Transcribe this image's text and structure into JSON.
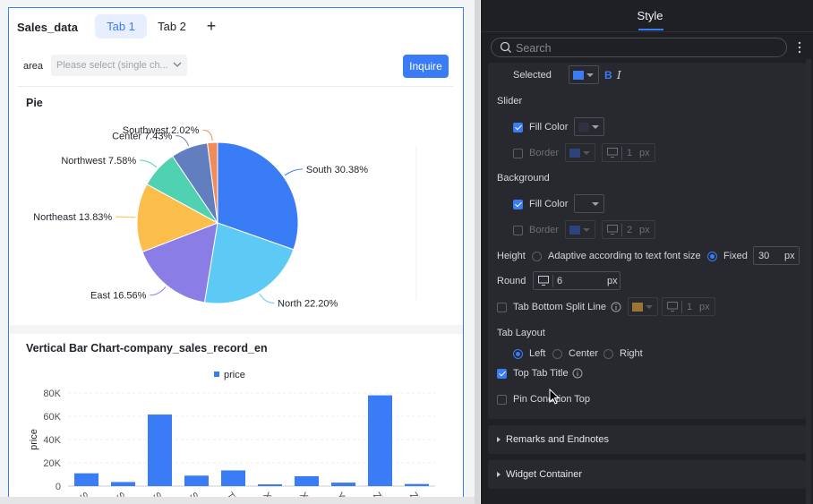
{
  "widget": {
    "title": "Sales_data",
    "tabs": [
      {
        "label": "Tab 1",
        "active": true
      },
      {
        "label": "Tab 2",
        "active": false
      }
    ],
    "add_tab": "+"
  },
  "filter": {
    "label": "area",
    "placeholder": "Please select (single ch...",
    "button": "Inquire"
  },
  "pie_card": {
    "title": "Pie"
  },
  "bar_card": {
    "title": "Vertical Bar Chart-company_sales_record_en"
  },
  "chart_data": [
    {
      "type": "pie",
      "title": "Pie",
      "slices": [
        {
          "label": "South",
          "percent": 30.38,
          "color": "#3a7bf6"
        },
        {
          "label": "North",
          "percent": 22.2,
          "color": "#5ccaf5"
        },
        {
          "label": "East",
          "percent": 16.56,
          "color": "#8a7ee6"
        },
        {
          "label": "Northeast",
          "percent": 13.83,
          "color": "#fbbe4b"
        },
        {
          "label": "Northwest",
          "percent": 7.58,
          "color": "#50d2b2"
        },
        {
          "label": "Center",
          "percent": 7.43,
          "color": "#617fbe"
        },
        {
          "label": "Southwest",
          "percent": 2.02,
          "color": "#f08c5a"
        }
      ]
    },
    {
      "type": "bar",
      "title": "Vertical Bar Chart-company_sales_record_en",
      "legend": "price",
      "ylabel": "price",
      "ylim": [
        0,
        80000
      ],
      "yticks": [
        "0",
        "20K",
        "40K",
        "60K",
        "80K"
      ],
      "categories": [
        "Shar",
        "Shar",
        "Shar",
        "Sich",
        "Tian",
        "Xica",
        "Xinji",
        "Yunr",
        "Zheji",
        "Zhor"
      ],
      "values": [
        11000,
        3500,
        61500,
        9000,
        13500,
        1500,
        8500,
        3000,
        78000,
        1800
      ],
      "color": "#3a7bf6"
    }
  ],
  "panel": {
    "title": "Style",
    "search_placeholder": "Search",
    "selected_label": "Selected",
    "selected_color": "#3a7bf6",
    "bold": "B",
    "italic": "I",
    "slider": {
      "title": "Slider",
      "fill_color": "Fill Color",
      "fill_swatch": "#2d3142",
      "border": "Border",
      "border_swatch": "#2f4f9a",
      "border_px": "1",
      "unit": "px"
    },
    "background": {
      "title": "Background",
      "fill_color": "Fill Color",
      "fill_swatch": "#28292e",
      "border": "Border",
      "border_swatch": "#2f4f9a",
      "border_px": "2",
      "unit": "px"
    },
    "height": {
      "label": "Height",
      "adaptive": "Adaptive according to text font size",
      "fixed": "Fixed",
      "value": "30",
      "unit": "px"
    },
    "round": {
      "label": "Round",
      "value": "6",
      "unit": "px"
    },
    "split_line": {
      "label": "Tab Bottom Split Line",
      "swatch": "#9c7438",
      "px": "1",
      "unit": "px"
    },
    "layout": {
      "title": "Tab Layout",
      "left": "Left",
      "center": "Center",
      "right": "Right"
    },
    "top_tab_title": "Top Tab Title",
    "pin_condition": "Pin Condition Top",
    "sections": [
      "Remarks and Endnotes",
      "Widget Container"
    ]
  }
}
